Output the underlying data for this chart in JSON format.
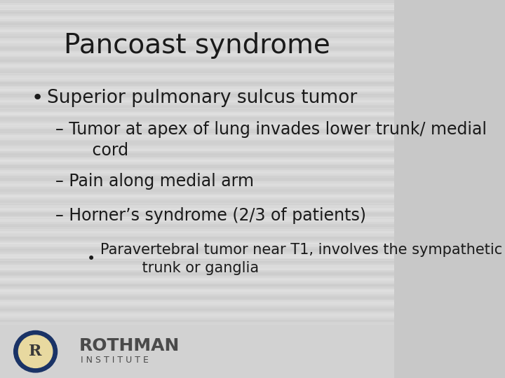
{
  "title": "Pancoast syndrome",
  "title_fontsize": 28,
  "title_color": "#1a1a1a",
  "text_color": "#1a1a1a",
  "bullet1": "Superior pulmonary sulcus tumor",
  "bullet1_fontsize": 19,
  "sub1": "– Tumor at apex of lung invades lower trunk/ medial\n       cord",
  "sub2": "– Pain along medial arm",
  "sub3": "– Horner’s syndrome (2/3 of patients)",
  "sub_fontsize": 17,
  "subsub": "Paravertebral tumor near T1, involves the sympathetic\n         trunk or ganglia",
  "subsub_fontsize": 15,
  "footer_rothman": "ROTHMAN",
  "footer_institute": "I N S T I T U T E",
  "footer_fontsize_main": 18,
  "footer_fontsize_sub": 9,
  "footer_color": "#4a4a4a",
  "circle_outer_color": "#1a3366",
  "circle_inner_color": "#e8d9a0",
  "circle_letter": "R",
  "circle_letter_color": "#3a3a3a"
}
